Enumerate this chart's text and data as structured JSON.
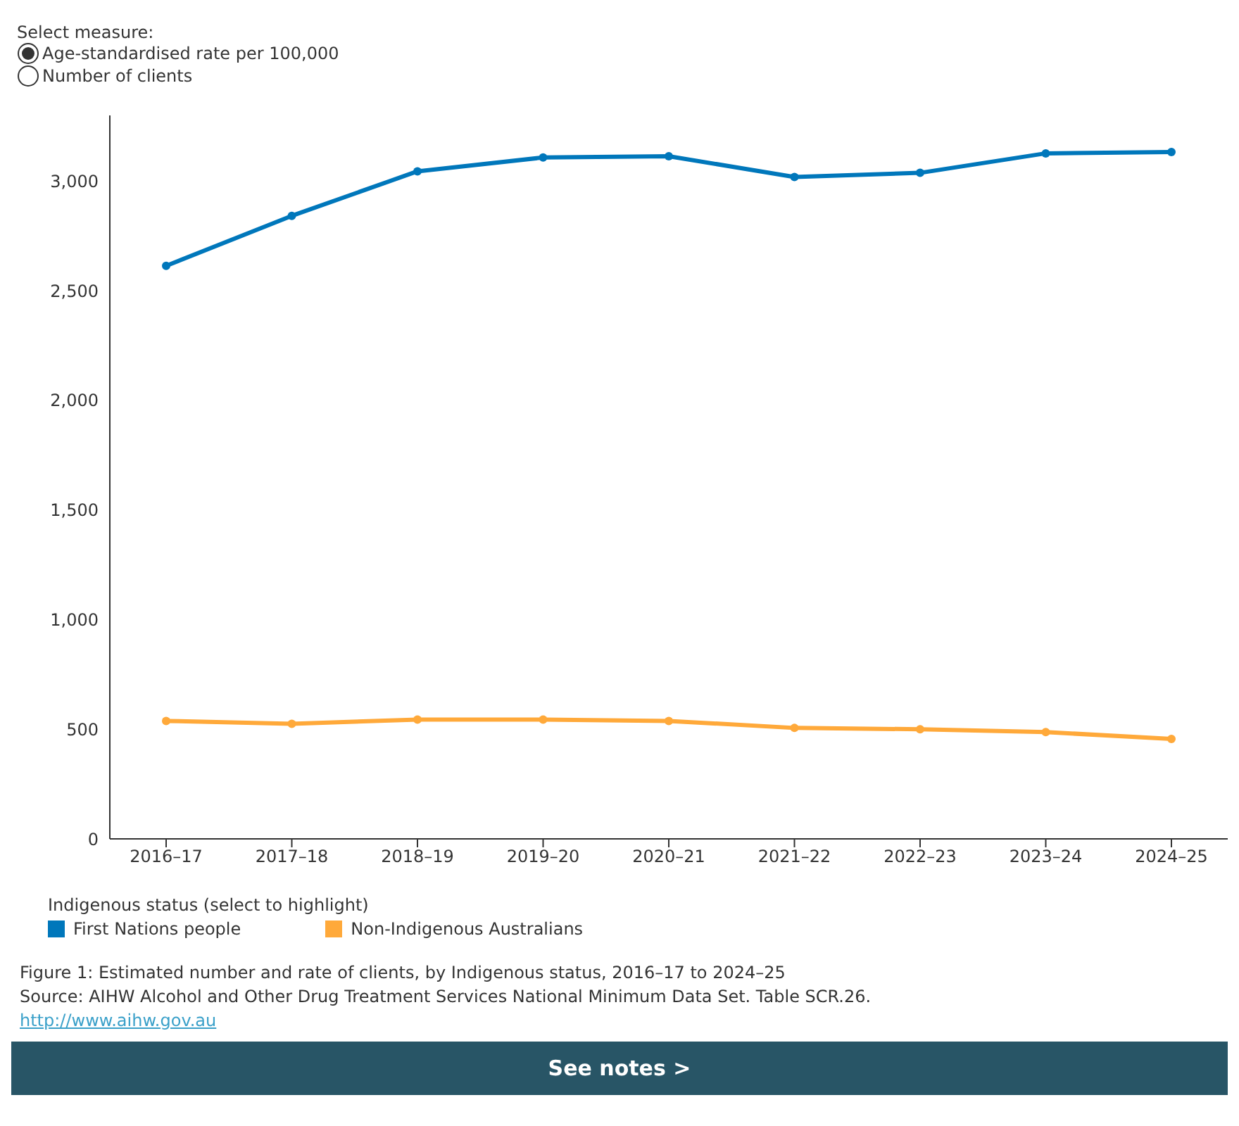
{
  "chart_data": {
    "type": "line",
    "categories": [
      "2016–17",
      "2017–18",
      "2018–19",
      "2019–20",
      "2020–21",
      "2021–22",
      "2022–23",
      "2023–24",
      "2024–25"
    ],
    "series": [
      {
        "name": "First Nations people",
        "color": "#0077bb",
        "values": [
          2614,
          2842,
          3045,
          3108,
          3114,
          3019,
          3038,
          3127,
          3133
        ]
      },
      {
        "name": "Non-Indigenous Australians",
        "color": "#ffa93a",
        "values": [
          538,
          525,
          544,
          544,
          538,
          506,
          500,
          487,
          456
        ]
      }
    ],
    "ylim": [
      0,
      3300
    ],
    "yticks": [
      0,
      500,
      {
        "value": 1000,
        "label": "1,000"
      },
      {
        "value": 1500,
        "label": "1,500"
      },
      {
        "value": 2000,
        "label": "2,000"
      },
      {
        "value": 2500,
        "label": "2,500"
      },
      {
        "value": 3000,
        "label": "3,000"
      }
    ],
    "marker": "circle",
    "line_style": "solid",
    "legend": "bottom left",
    "legend_title": "Indigenous status (select to highlight)",
    "annotations": [
      "Select measure:",
      "Age-standardised rate per 100,000",
      "Number of clients",
      "Figure 1: Estimated number and rate of clients, by Indigenous status, 2016–17 to 2024–25",
      "Source: AIHW Alcohol and Other Drug Treatment Services National Minimum Data Set. Table SCR.26.",
      "http://www.aihw.gov.au",
      "See notes >"
    ]
  }
}
